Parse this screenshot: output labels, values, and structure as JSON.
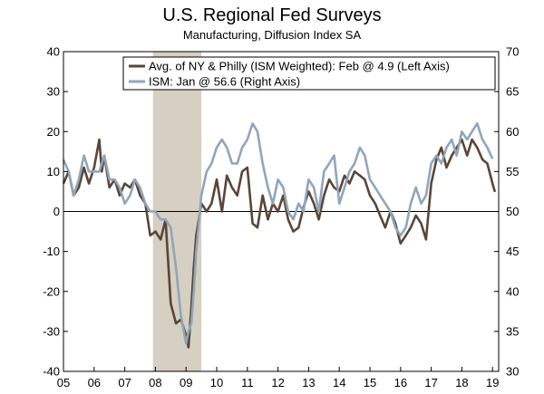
{
  "chart_data": {
    "type": "line",
    "title": "U.S. Regional Fed Surveys",
    "subtitle": "Manufacturing, Diffusion Index SA",
    "x_ticks": [
      "05",
      "06",
      "07",
      "08",
      "09",
      "10",
      "11",
      "12",
      "13",
      "14",
      "15",
      "16",
      "17",
      "18",
      "19"
    ],
    "x_range": [
      2005.0,
      2019.2
    ],
    "left_axis": {
      "ticks": [
        40,
        30,
        20,
        10,
        0,
        -10,
        -20,
        -30,
        -40
      ],
      "range": [
        -40,
        40
      ]
    },
    "right_axis": {
      "ticks": [
        70,
        65,
        60,
        55,
        50,
        45,
        40,
        35,
        30
      ],
      "range": [
        30,
        70
      ]
    },
    "recession": {
      "start": 2007.92,
      "end": 2009.5
    },
    "zero_line": 0,
    "legend_position": "top-right",
    "series": [
      {
        "name": "Avg. of NY & Philly (ISM Weighted): Feb @ 4.9  (Left Axis)",
        "axis": "left",
        "color": "#5a4636",
        "x": [
          2005.0,
          2005.17,
          2005.33,
          2005.5,
          2005.67,
          2005.83,
          2006.0,
          2006.17,
          2006.25,
          2006.33,
          2006.5,
          2006.67,
          2006.83,
          2007.0,
          2007.17,
          2007.33,
          2007.5,
          2007.67,
          2007.83,
          2008.0,
          2008.17,
          2008.33,
          2008.5,
          2008.67,
          2008.83,
          2009.0,
          2009.08,
          2009.17,
          2009.25,
          2009.33,
          2009.5,
          2009.67,
          2009.83,
          2010.0,
          2010.17,
          2010.33,
          2010.5,
          2010.67,
          2010.83,
          2011.0,
          2011.17,
          2011.33,
          2011.5,
          2011.67,
          2011.83,
          2012.0,
          2012.17,
          2012.33,
          2012.5,
          2012.67,
          2012.83,
          2013.0,
          2013.17,
          2013.33,
          2013.5,
          2013.67,
          2013.83,
          2014.0,
          2014.17,
          2014.33,
          2014.5,
          2014.67,
          2014.83,
          2015.0,
          2015.17,
          2015.33,
          2015.5,
          2015.67,
          2015.83,
          2016.0,
          2016.17,
          2016.33,
          2016.5,
          2016.67,
          2016.83,
          2017.0,
          2017.17,
          2017.33,
          2017.5,
          2017.67,
          2017.83,
          2018.0,
          2018.17,
          2018.33,
          2018.5,
          2018.67,
          2018.83,
          2019.0,
          2019.08
        ],
        "values": [
          7,
          10,
          4,
          6,
          11,
          7,
          11,
          18,
          10,
          14,
          6,
          8,
          4,
          7,
          6,
          8,
          4,
          2,
          -6,
          -5,
          -7,
          -2,
          -23,
          -28,
          -27,
          -31,
          -34,
          -24,
          -14,
          -6,
          2,
          0,
          2,
          8,
          0,
          9,
          6,
          4,
          10,
          11,
          -3,
          -4,
          4,
          -2,
          2,
          0,
          4,
          -2,
          -5,
          -4,
          1,
          5,
          2,
          -2,
          4,
          8,
          6,
          5,
          9,
          7,
          10,
          9,
          8,
          4,
          2,
          -1,
          -4,
          0,
          -3,
          -8,
          -6,
          -4,
          -1,
          -3,
          -7,
          7,
          13,
          16,
          11,
          14,
          16,
          18,
          14,
          18,
          16,
          13,
          12,
          7,
          4.9
        ]
      },
      {
        "name": "ISM: Jan @ 56.6  (Right Axis)",
        "axis": "right",
        "color": "#8fa6ba",
        "x": [
          2005.0,
          2005.17,
          2005.33,
          2005.5,
          2005.67,
          2005.83,
          2006.0,
          2006.17,
          2006.33,
          2006.5,
          2006.67,
          2006.83,
          2007.0,
          2007.17,
          2007.33,
          2007.5,
          2007.67,
          2007.83,
          2008.0,
          2008.17,
          2008.33,
          2008.5,
          2008.67,
          2008.83,
          2009.0,
          2009.08,
          2009.17,
          2009.25,
          2009.33,
          2009.5,
          2009.67,
          2009.83,
          2010.0,
          2010.17,
          2010.33,
          2010.5,
          2010.67,
          2010.83,
          2011.0,
          2011.17,
          2011.33,
          2011.5,
          2011.67,
          2011.83,
          2012.0,
          2012.17,
          2012.33,
          2012.5,
          2012.67,
          2012.83,
          2013.0,
          2013.17,
          2013.33,
          2013.5,
          2013.67,
          2013.83,
          2014.0,
          2014.17,
          2014.33,
          2014.5,
          2014.67,
          2014.83,
          2015.0,
          2015.17,
          2015.33,
          2015.5,
          2015.67,
          2015.83,
          2016.0,
          2016.17,
          2016.33,
          2016.5,
          2016.67,
          2016.83,
          2017.0,
          2017.17,
          2017.33,
          2017.5,
          2017.67,
          2017.83,
          2018.0,
          2018.17,
          2018.33,
          2018.5,
          2018.67,
          2018.83,
          2019.0
        ],
        "values": [
          56.5,
          55,
          52,
          54,
          57,
          55,
          55,
          55,
          57,
          54,
          54,
          53,
          51,
          52,
          54,
          53,
          51,
          50,
          50,
          49,
          49,
          48,
          43,
          37,
          33.5,
          35,
          36,
          40,
          45,
          52,
          55,
          56,
          58,
          59,
          58,
          56,
          56,
          58,
          59,
          61,
          60,
          56,
          53,
          51,
          54,
          53,
          50,
          49,
          51,
          50,
          54,
          53,
          50,
          55,
          56,
          57,
          51,
          53,
          55,
          56,
          58,
          57,
          54,
          53,
          52,
          51,
          50,
          48,
          47,
          48,
          51,
          53,
          51,
          52,
          56,
          57,
          56,
          58,
          59,
          57,
          60,
          59,
          60,
          61,
          59,
          58,
          56.6
        ]
      }
    ]
  }
}
